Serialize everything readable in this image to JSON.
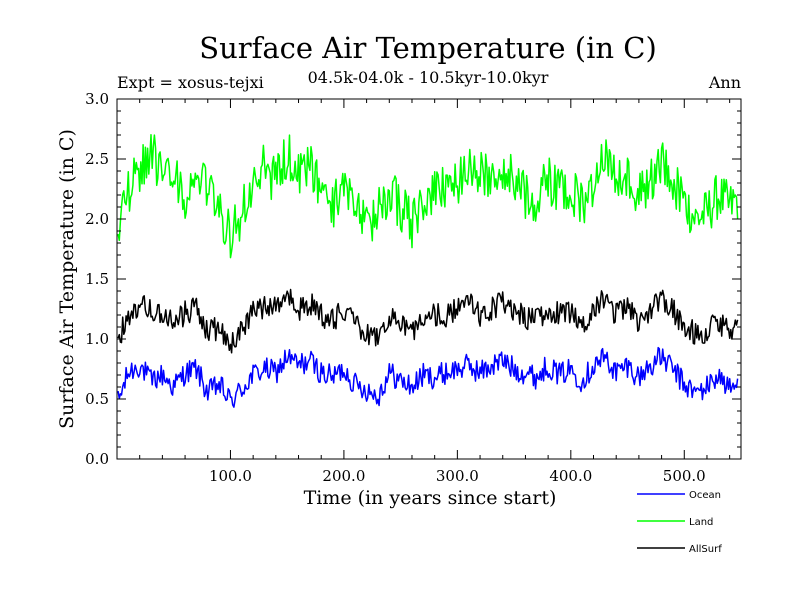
{
  "chart_data": {
    "type": "line",
    "title": "Surface Air Temperature (in C)",
    "subtitle": "04.5k-04.0k - 10.5kyr-10.0kyr",
    "left_note": "Expt = xosus-tejxi",
    "right_note": "Ann",
    "xlabel": "Time (in years since start)",
    "ylabel": "Surface Air Temperature (in C)",
    "xlim": [
      0,
      550
    ],
    "ylim": [
      0.0,
      3.0
    ],
    "xticks": [
      100,
      200,
      300,
      400,
      500
    ],
    "xtick_labels": [
      "100.0",
      "200.0",
      "300.0",
      "400.0",
      "500.0"
    ],
    "yticks": [
      0.0,
      0.5,
      1.0,
      1.5,
      2.0,
      2.5,
      3.0
    ],
    "ytick_labels": [
      "0.0",
      "0.5",
      "1.0",
      "1.5",
      "2.0",
      "2.5",
      "3.0"
    ],
    "legend_position": "bottom-right outside",
    "series": [
      {
        "name": "Ocean",
        "color": "#0000ff",
        "x_start": 0,
        "x_step": 10,
        "values": [
          0.45,
          0.72,
          0.78,
          0.65,
          0.7,
          0.6,
          0.72,
          0.75,
          0.55,
          0.62,
          0.48,
          0.58,
          0.7,
          0.75,
          0.72,
          0.85,
          0.78,
          0.82,
          0.72,
          0.68,
          0.75,
          0.62,
          0.58,
          0.52,
          0.72,
          0.65,
          0.6,
          0.7,
          0.68,
          0.72,
          0.75,
          0.78,
          0.72,
          0.78,
          0.82,
          0.75,
          0.72,
          0.68,
          0.78,
          0.7,
          0.75,
          0.65,
          0.78,
          0.85,
          0.72,
          0.78,
          0.68,
          0.78,
          0.85,
          0.75,
          0.62,
          0.55,
          0.6,
          0.7,
          0.58,
          0.63
        ]
      },
      {
        "name": "Land",
        "color": "#00ff00",
        "x_start": 0,
        "x_step": 10,
        "values": [
          1.95,
          2.25,
          2.4,
          2.6,
          2.3,
          2.35,
          2.15,
          2.3,
          2.25,
          2.1,
          1.85,
          2.05,
          2.25,
          2.45,
          2.3,
          2.55,
          2.35,
          2.45,
          2.2,
          2.1,
          2.3,
          2.15,
          1.9,
          2.05,
          2.25,
          2.1,
          1.95,
          2.15,
          2.2,
          2.25,
          2.3,
          2.5,
          2.35,
          2.4,
          2.45,
          2.3,
          2.2,
          2.15,
          2.35,
          2.2,
          2.25,
          2.1,
          2.3,
          2.55,
          2.3,
          2.4,
          2.2,
          2.3,
          2.5,
          2.3,
          2.15,
          2.0,
          2.05,
          2.2,
          2.1,
          2.2
        ]
      },
      {
        "name": "AllSurf",
        "color": "#000000",
        "x_start": 0,
        "x_step": 10,
        "values": [
          0.98,
          1.2,
          1.3,
          1.25,
          1.2,
          1.12,
          1.22,
          1.25,
          1.05,
          1.1,
          0.95,
          1.1,
          1.22,
          1.28,
          1.25,
          1.35,
          1.25,
          1.3,
          1.2,
          1.15,
          1.25,
          1.1,
          1.05,
          1.0,
          1.2,
          1.15,
          1.05,
          1.15,
          1.2,
          1.2,
          1.25,
          1.3,
          1.2,
          1.25,
          1.3,
          1.25,
          1.18,
          1.15,
          1.25,
          1.2,
          1.22,
          1.12,
          1.25,
          1.35,
          1.2,
          1.28,
          1.15,
          1.25,
          1.35,
          1.25,
          1.1,
          1.05,
          1.05,
          1.15,
          1.05,
          1.1
        ]
      }
    ]
  }
}
